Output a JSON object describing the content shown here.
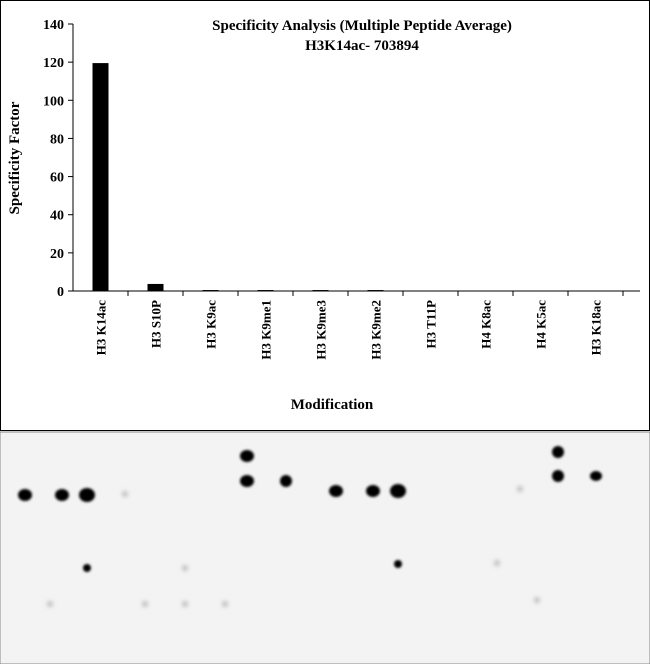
{
  "chart_data": {
    "type": "bar",
    "title": "Specificity Analysis (Multiple Peptide Average)",
    "subtitle": "H3K14ac- 703894",
    "x_label": "Modification",
    "y_label": "Specificity Factor",
    "categories": [
      "H3 K14ac",
      "H3 S10P",
      "H3 K9ac",
      "H3 K9me1",
      "H3 K9me3",
      "H3 K9me2",
      "H3 T11P",
      "H4 K8ac",
      "H4 K5ac",
      "H3 K18ac"
    ],
    "values": [
      119.5,
      3.7,
      0.5,
      0.5,
      0.5,
      0.5,
      0,
      0,
      0,
      0
    ],
    "color": "#000000",
    "ylim": [
      0,
      140
    ],
    "yticks": [
      0,
      20,
      40,
      60,
      80,
      100,
      120,
      140
    ],
    "grid": false
  }
}
